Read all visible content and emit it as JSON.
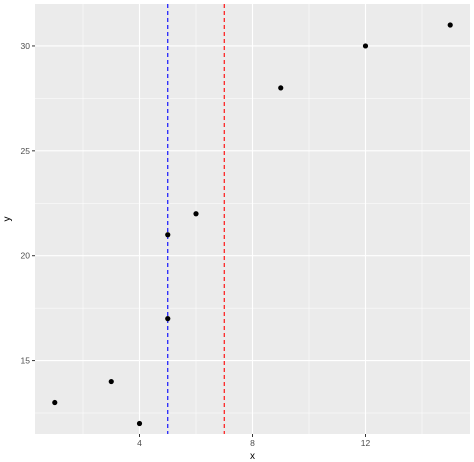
{
  "chart_data": {
    "type": "scatter",
    "title": "",
    "xlabel": "x",
    "ylabel": "y",
    "xlim": [
      0.3,
      15.7
    ],
    "ylim": [
      11.5,
      32.0
    ],
    "x_ticks": [
      4,
      8,
      12
    ],
    "y_ticks": [
      15,
      20,
      25,
      30
    ],
    "x_tick_labels": [
      "4",
      "8",
      "12"
    ],
    "y_tick_labels": [
      "15",
      "20",
      "25",
      "30"
    ],
    "grid": true,
    "legend": "none",
    "points": [
      {
        "x": 1,
        "y": 13
      },
      {
        "x": 3,
        "y": 14
      },
      {
        "x": 4,
        "y": 12
      },
      {
        "x": 5,
        "y": 17
      },
      {
        "x": 5,
        "y": 21
      },
      {
        "x": 6,
        "y": 22
      },
      {
        "x": 9,
        "y": 28
      },
      {
        "x": 12,
        "y": 30
      },
      {
        "x": 15,
        "y": 31
      }
    ],
    "vlines": [
      {
        "x": 5,
        "color": "#0000ff",
        "linetype": "dashed"
      },
      {
        "x": 7,
        "color": "#ff0000",
        "linetype": "dashed"
      }
    ],
    "colors": {
      "panel_background": "#ebebeb",
      "grid_major": "#ffffff",
      "point": "#000000"
    }
  }
}
